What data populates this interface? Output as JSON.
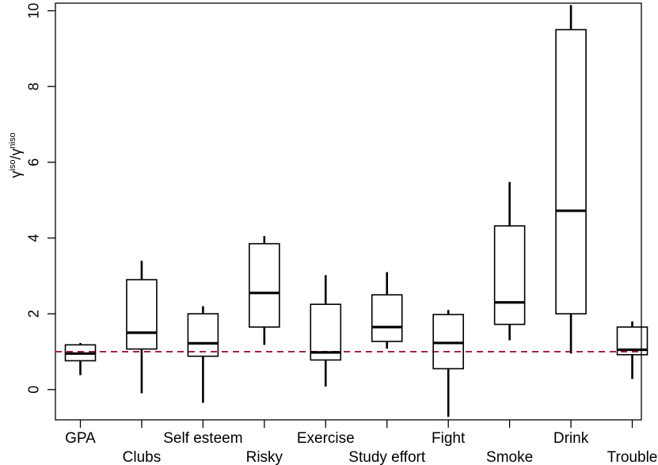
{
  "chart_data": {
    "type": "box",
    "ylabel": {
      "base_1": "γ",
      "sup_1": "iso",
      "sep": "/",
      "base_2": "γ",
      "sup_2": "niso"
    },
    "ylim": [
      -0.8,
      10.2
    ],
    "yticks": [
      "0",
      "2",
      "4",
      "6",
      "8",
      "10"
    ],
    "reference_line": {
      "value": 1,
      "color": "#a0153e",
      "style": "dashed"
    },
    "grid": false,
    "legend": "none",
    "box_color": "#000000",
    "categories": [
      "GPA",
      "Clubs",
      "Self esteem",
      "Risky",
      "Exercise",
      "Study effort",
      "Fight",
      "Smoke",
      "Drink",
      "Trouble"
    ],
    "boxes": [
      {
        "name": "GPA",
        "whisker_low": 0.38,
        "q1": 0.76,
        "median": 0.95,
        "q3": 1.18,
        "whisker_high": 1.23
      },
      {
        "name": "Clubs",
        "whisker_low": -0.1,
        "q1": 1.07,
        "median": 1.5,
        "q3": 2.9,
        "whisker_high": 3.4
      },
      {
        "name": "Self esteem",
        "whisker_low": -0.35,
        "q1": 0.88,
        "median": 1.22,
        "q3": 2.0,
        "whisker_high": 2.2
      },
      {
        "name": "Risky",
        "whisker_low": 1.18,
        "q1": 1.65,
        "median": 2.55,
        "q3": 3.85,
        "whisker_high": 4.05
      },
      {
        "name": "Exercise",
        "whisker_low": 0.08,
        "q1": 0.78,
        "median": 0.98,
        "q3": 2.25,
        "whisker_high": 3.02
      },
      {
        "name": "Study effort",
        "whisker_low": 1.08,
        "q1": 1.27,
        "median": 1.65,
        "q3": 2.5,
        "whisker_high": 3.1
      },
      {
        "name": "Fight",
        "whisker_low": -0.72,
        "q1": 0.55,
        "median": 1.23,
        "q3": 1.98,
        "whisker_high": 2.1
      },
      {
        "name": "Smoke",
        "whisker_low": 1.3,
        "q1": 1.72,
        "median": 2.3,
        "q3": 4.32,
        "whisker_high": 5.48
      },
      {
        "name": "Drink",
        "whisker_low": 0.95,
        "q1": 2.0,
        "median": 4.72,
        "q3": 9.5,
        "whisker_high": 10.15
      },
      {
        "name": "Trouble",
        "whisker_low": 0.28,
        "q1": 0.92,
        "median": 1.05,
        "q3": 1.65,
        "whisker_high": 1.8
      }
    ]
  }
}
